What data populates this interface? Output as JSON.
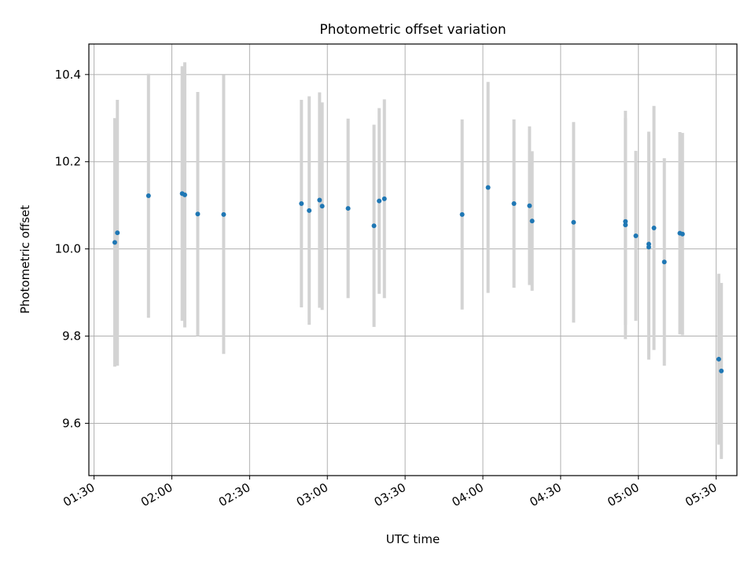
{
  "chart_data": {
    "type": "scatter",
    "title": "Photometric offset variation",
    "xlabel": "UTC time",
    "ylabel": "Photometric offset",
    "x_unit": "UTC hh:mm",
    "xlim": [
      "01:28",
      "05:38"
    ],
    "ylim": [
      9.48,
      10.47
    ],
    "x_ticks": [
      "01:30",
      "02:00",
      "02:30",
      "03:00",
      "03:30",
      "04:00",
      "04:30",
      "05:00",
      "05:30"
    ],
    "y_ticks": [
      9.6,
      9.8,
      10.0,
      10.2,
      10.4
    ],
    "y_tick_labels": [
      "9.6",
      "9.8",
      "10.0",
      "10.2",
      "10.4"
    ],
    "grid": true,
    "point_color": "#1f77b4",
    "errorbar_color": "#d3d3d3",
    "points": [
      {
        "time": "01:38",
        "y": 10.015,
        "yerr": 0.285
      },
      {
        "time": "01:39",
        "y": 10.037,
        "yerr": 0.305
      },
      {
        "time": "01:51",
        "y": 10.122,
        "yerr": 0.28
      },
      {
        "time": "02:04",
        "y": 10.127,
        "yerr": 0.292
      },
      {
        "time": "02:05",
        "y": 10.124,
        "yerr": 0.304
      },
      {
        "time": "02:10",
        "y": 10.08,
        "yerr": 0.28
      },
      {
        "time": "02:20",
        "y": 10.079,
        "yerr": 0.32
      },
      {
        "time": "02:50",
        "y": 10.104,
        "yerr": 0.238
      },
      {
        "time": "02:53",
        "y": 10.088,
        "yerr": 0.262
      },
      {
        "time": "02:57",
        "y": 10.112,
        "yerr": 0.247
      },
      {
        "time": "02:58",
        "y": 10.098,
        "yerr": 0.238
      },
      {
        "time": "03:08",
        "y": 10.093,
        "yerr": 0.206
      },
      {
        "time": "03:18",
        "y": 10.053,
        "yerr": 0.232
      },
      {
        "time": "03:20",
        "y": 10.11,
        "yerr": 0.213
      },
      {
        "time": "03:22",
        "y": 10.115,
        "yerr": 0.228
      },
      {
        "time": "03:52",
        "y": 10.079,
        "yerr": 0.218
      },
      {
        "time": "04:02",
        "y": 10.141,
        "yerr": 0.242
      },
      {
        "time": "04:12",
        "y": 10.104,
        "yerr": 0.193
      },
      {
        "time": "04:18",
        "y": 10.099,
        "yerr": 0.182
      },
      {
        "time": "04:19",
        "y": 10.064,
        "yerr": 0.16
      },
      {
        "time": "04:35",
        "y": 10.061,
        "yerr": 0.23
      },
      {
        "time": "04:55",
        "y": 10.055,
        "yerr": 0.262
      },
      {
        "time": "04:55",
        "y": 10.063,
        "yerr": 0.237
      },
      {
        "time": "04:59",
        "y": 10.03,
        "yerr": 0.195
      },
      {
        "time": "05:04",
        "y": 10.011,
        "yerr": 0.258
      },
      {
        "time": "05:04",
        "y": 10.004,
        "yerr": 0.258
      },
      {
        "time": "05:06",
        "y": 10.048,
        "yerr": 0.28
      },
      {
        "time": "05:10",
        "y": 9.97,
        "yerr": 0.238
      },
      {
        "time": "05:16",
        "y": 10.036,
        "yerr": 0.232
      },
      {
        "time": "05:17",
        "y": 10.034,
        "yerr": 0.232
      },
      {
        "time": "05:31",
        "y": 9.747,
        "yerr": 0.196
      },
      {
        "time": "05:32",
        "y": 9.72,
        "yerr": 0.202
      }
    ]
  }
}
